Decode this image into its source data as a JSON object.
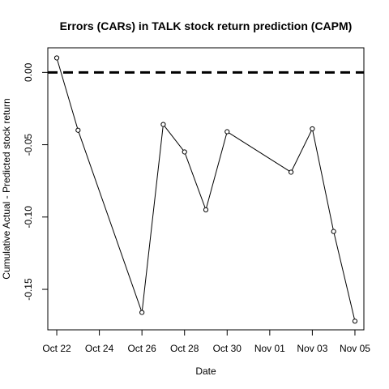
{
  "chart_data": {
    "type": "line",
    "title": "Errors (CARs) in TALK stock return prediction (CAPM)",
    "xlabel": "Date",
    "ylabel": "Cumulative Actual - Predicted stock return",
    "x_ticks": [
      {
        "date": "2020-10-22",
        "label": "Oct 22"
      },
      {
        "date": "2020-10-24",
        "label": "Oct 24"
      },
      {
        "date": "2020-10-26",
        "label": "Oct 26"
      },
      {
        "date": "2020-10-28",
        "label": "Oct 28"
      },
      {
        "date": "2020-10-30",
        "label": "Oct 30"
      },
      {
        "date": "2020-11-01",
        "label": "Nov 01"
      },
      {
        "date": "2020-11-03",
        "label": "Nov 03"
      },
      {
        "date": "2020-11-05",
        "label": "Nov 05"
      }
    ],
    "y_ticks": [
      {
        "value": 0.0,
        "label": "0.00"
      },
      {
        "value": -0.05,
        "label": "-0.05"
      },
      {
        "value": -0.1,
        "label": "-0.10"
      },
      {
        "value": -0.15,
        "label": "-0.15"
      }
    ],
    "xlim": [
      "2020-10-21.58",
      "2020-11-05.42"
    ],
    "ylim": [
      -0.178,
      0.017
    ],
    "reference_line": {
      "y": 0.0,
      "style": "dashed"
    },
    "series": [
      {
        "x": [
          "2020-10-22",
          "2020-10-23",
          "2020-10-26",
          "2020-10-27",
          "2020-10-28",
          "2020-10-29",
          "2020-10-30",
          "2020-11-02",
          "2020-11-03",
          "2020-11-04",
          "2020-11-05"
        ],
        "values": [
          0.01,
          -0.04,
          -0.166,
          -0.036,
          -0.055,
          -0.095,
          -0.041,
          -0.069,
          -0.039,
          -0.11,
          -0.172
        ]
      }
    ]
  }
}
